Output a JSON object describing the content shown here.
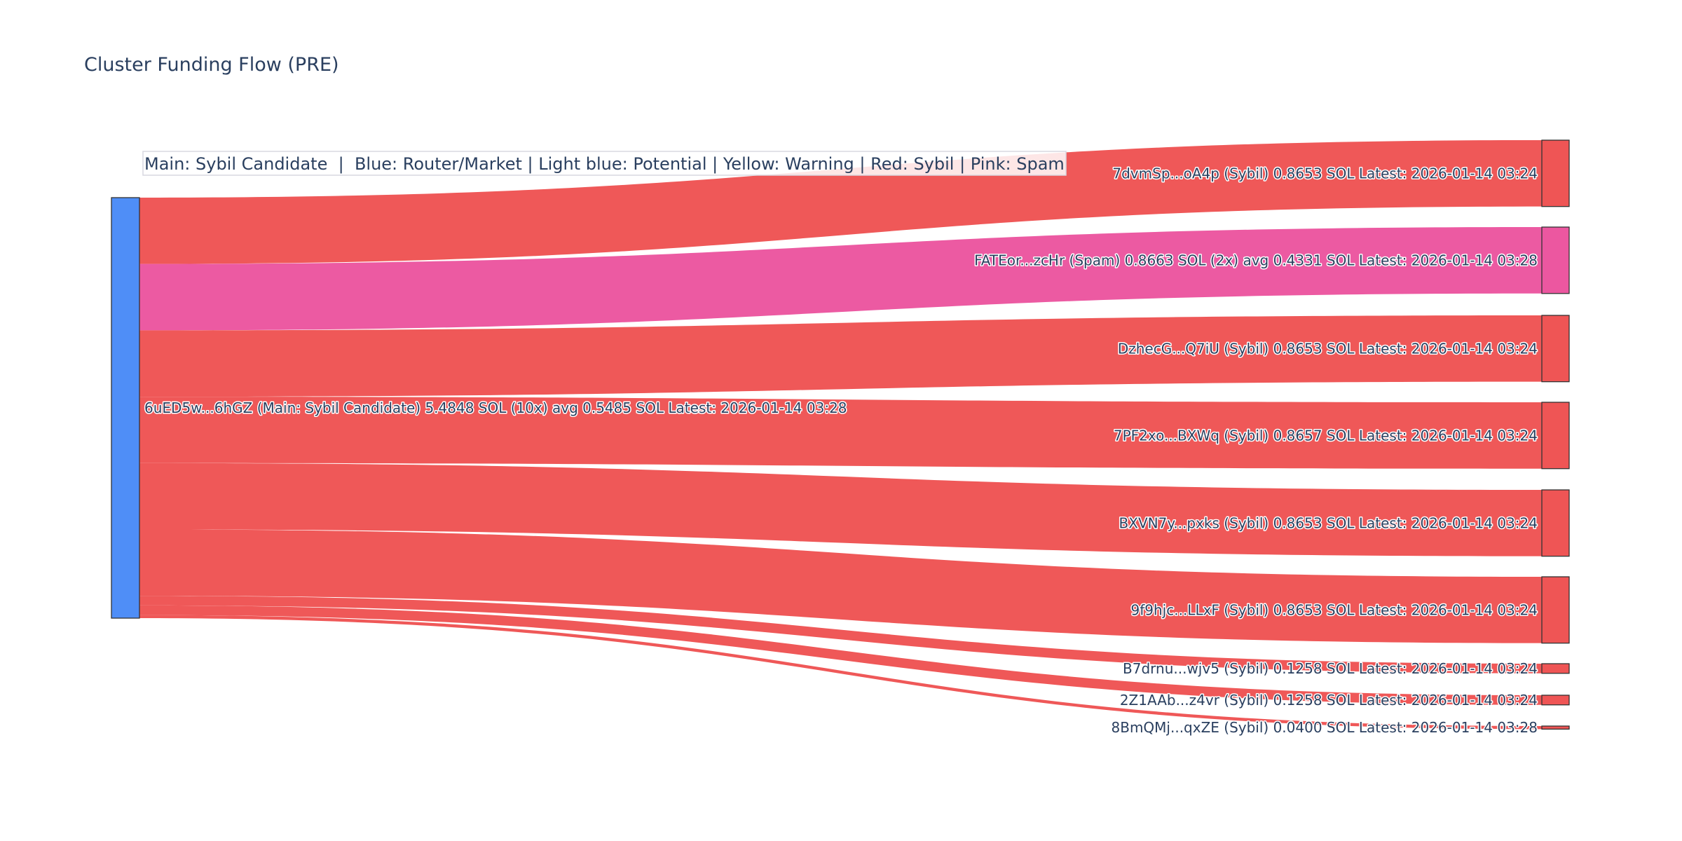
{
  "chart_data": {
    "type": "sankey",
    "title": "Cluster Funding Flow (PRE)",
    "legend_text": "Main: Sybil Candidate  |  Blue: Router/Market | Light blue: Potential | Yellow: Warning | Red: Sybil | Pink: Spam",
    "colors": {
      "main": "#4F8EF7",
      "sybil": "#EF5555",
      "spam": "#EC57A0"
    },
    "source": {
      "label": "6uED5w...6hGZ (Main: Sybil Candidate) 5.4848 SOL (10x) avg 0.5485 SOL Latest: 2026-01-14 03:28",
      "value": 5.4848,
      "category": "main"
    },
    "targets": [
      {
        "label": "7dvmSp...oA4p (Sybil) 0.8653 SOL Latest: 2026-01-14 03:24",
        "value": 0.8653,
        "category": "sybil"
      },
      {
        "label": "FATEor...zcHr (Spam) 0.8663 SOL (2x) avg 0.4331 SOL Latest: 2026-01-14 03:28",
        "value": 0.8663,
        "category": "spam"
      },
      {
        "label": "DzhecG...Q7iU (Sybil) 0.8653 SOL Latest: 2026-01-14 03:24",
        "value": 0.8653,
        "category": "sybil"
      },
      {
        "label": "7PF2xo...BXWq (Sybil) 0.8657 SOL Latest: 2026-01-14 03:24",
        "value": 0.8657,
        "category": "sybil"
      },
      {
        "label": "BXVN7y...pxks (Sybil) 0.8653 SOL Latest: 2026-01-14 03:24",
        "value": 0.8653,
        "category": "sybil"
      },
      {
        "label": "9f9hjc...LLxF (Sybil) 0.8653 SOL Latest: 2026-01-14 03:24",
        "value": 0.8653,
        "category": "sybil"
      },
      {
        "label": "B7drnu...wjv5 (Sybil) 0.1258 SOL Latest: 2026-01-14 03:24",
        "value": 0.1258,
        "category": "sybil"
      },
      {
        "label": "2Z1AAb...z4vr (Sybil) 0.1258 SOL Latest: 2026-01-14 03:24",
        "value": 0.1258,
        "category": "sybil"
      },
      {
        "label": "8BmQMj...qxZE (Sybil) 0.0400 SOL Latest: 2026-01-14 03:28",
        "value": 0.04,
        "category": "sybil"
      }
    ]
  }
}
